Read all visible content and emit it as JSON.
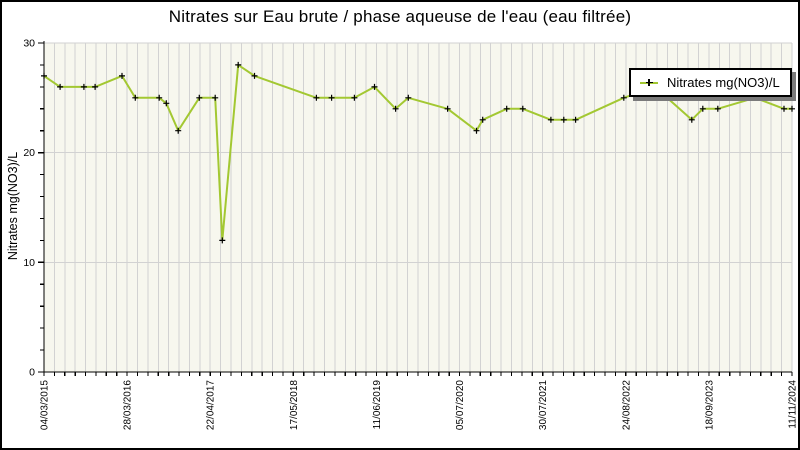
{
  "title": "Nitrates sur Eau brute / phase aqueuse de l'eau (eau filtrée)",
  "legend": {
    "label": "Nitrates mg(NO3)/L"
  },
  "y_axis": {
    "label": "Nitrates mg(NO3)/L",
    "min": 0,
    "max": 30,
    "major_ticks": [
      0,
      10,
      20,
      30
    ],
    "minor_step": 2
  },
  "x_axis": {
    "tick_labels": [
      "04/03/2015",
      "28/03/2016",
      "22/04/2017",
      "17/05/2018",
      "11/06/2019",
      "05/07/2020",
      "30/07/2021",
      "24/08/2022",
      "18/09/2023",
      "11/11/2024"
    ],
    "start_date": "2015-03-04",
    "end_date": "2024-11-11",
    "minor_divisions": 72,
    "label_every_nth_division": 8
  },
  "colors": {
    "line": "#a3c832",
    "marker": "#000000",
    "grid": "#d2d2d2",
    "plot_bg": "#f7f7ee",
    "axis": "#000000",
    "text": "#000000",
    "legend_shadow": "#7a7a7a",
    "frame": "#000000"
  },
  "chart_data": {
    "type": "line",
    "title": "Nitrates sur Eau brute / phase aqueuse de l'eau (eau filtrée)",
    "xlabel": "",
    "ylabel": "Nitrates mg(NO3)/L",
    "ylim": [
      0,
      30
    ],
    "grid": "vertical-minor and horizontal-major",
    "legend_position": "top-right",
    "marker": "plus",
    "x_tick_labels": [
      "04/03/2015",
      "28/03/2016",
      "22/04/2017",
      "17/05/2018",
      "11/06/2019",
      "05/07/2020",
      "30/07/2021",
      "24/08/2022",
      "18/09/2023",
      "11/11/2024"
    ],
    "series": [
      {
        "name": "Nitrates mg(NO3)/L",
        "points": [
          {
            "d": "2015-03-04",
            "v": 27
          },
          {
            "d": "2015-05-19",
            "v": 26
          },
          {
            "d": "2015-09-09",
            "v": 26
          },
          {
            "d": "2015-11-01",
            "v": 26
          },
          {
            "d": "2016-03-07",
            "v": 27
          },
          {
            "d": "2016-05-09",
            "v": 25
          },
          {
            "d": "2016-08-30",
            "v": 25
          },
          {
            "d": "2016-10-03",
            "v": 24.5
          },
          {
            "d": "2016-11-28",
            "v": 22
          },
          {
            "d": "2017-03-08",
            "v": 25
          },
          {
            "d": "2017-05-22",
            "v": 25
          },
          {
            "d": "2017-06-25",
            "v": 12
          },
          {
            "d": "2017-09-08",
            "v": 28
          },
          {
            "d": "2017-11-24",
            "v": 27
          },
          {
            "d": "2018-09-13",
            "v": 25
          },
          {
            "d": "2018-11-24",
            "v": 25
          },
          {
            "d": "2019-03-12",
            "v": 25
          },
          {
            "d": "2019-06-15",
            "v": 26
          },
          {
            "d": "2019-09-23",
            "v": 24
          },
          {
            "d": "2019-11-22",
            "v": 25
          },
          {
            "d": "2020-05-26",
            "v": 24
          },
          {
            "d": "2020-10-10",
            "v": 22
          },
          {
            "d": "2020-11-08",
            "v": 23
          },
          {
            "d": "2021-03-02",
            "v": 24
          },
          {
            "d": "2021-05-17",
            "v": 24
          },
          {
            "d": "2021-09-27",
            "v": 23
          },
          {
            "d": "2021-11-27",
            "v": 23
          },
          {
            "d": "2022-01-22",
            "v": 23
          },
          {
            "d": "2022-09-07",
            "v": 25
          },
          {
            "d": "2023-02-01",
            "v": 26
          },
          {
            "d": "2023-07-26",
            "v": 23
          },
          {
            "d": "2023-09-16",
            "v": 24
          },
          {
            "d": "2023-11-26",
            "v": 24
          },
          {
            "d": "2024-05-20",
            "v": 25
          },
          {
            "d": "2024-10-04",
            "v": 24
          },
          {
            "d": "2024-11-11",
            "v": 24
          }
        ]
      }
    ]
  }
}
